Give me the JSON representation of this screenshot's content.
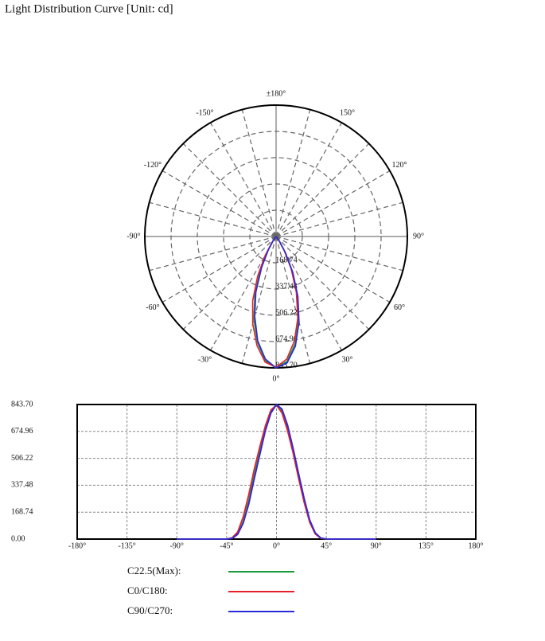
{
  "chart_data": [
    {
      "type": "polar",
      "title": "Light Distribution Curve [Unit: cd]",
      "x": [
        -90,
        -45,
        -40,
        -35,
        -30,
        -25,
        -20,
        -15,
        -10,
        -5,
        0,
        5,
        10,
        15,
        20,
        25,
        30,
        35,
        40,
        45,
        90
      ],
      "series": [
        {
          "color": "#1a9a3a",
          "values": [
            0,
            0,
            6,
            35,
            110,
            240,
            400,
            550,
            690,
            800,
            843.7,
            805,
            700,
            560,
            400,
            245,
            115,
            38,
            6,
            0,
            0
          ]
        },
        {
          "color": "#e8202a",
          "values": [
            0,
            0,
            8,
            45,
            140,
            280,
            440,
            580,
            710,
            810,
            840,
            790,
            680,
            540,
            380,
            230,
            105,
            32,
            5,
            0,
            0
          ]
        },
        {
          "color": "#2a2ad8",
          "values": [
            0,
            0,
            4,
            30,
            100,
            220,
            380,
            530,
            680,
            790,
            843.7,
            815,
            715,
            570,
            410,
            255,
            120,
            40,
            7,
            0,
            0
          ]
        }
      ],
      "rlim": [
        0,
        843.7
      ],
      "rticks": [
        {
          "value": 168.74,
          "label": "168.74"
        },
        {
          "value": 337.48,
          "label": "337.48"
        },
        {
          "value": 506.22,
          "label": "506.22"
        },
        {
          "value": 674.96,
          "label": "674.96"
        },
        {
          "value": 843.7,
          "label": "843.70"
        }
      ],
      "angleticks": [
        {
          "value": 180,
          "label": "±180°"
        },
        {
          "value": -150,
          "label": "-150°"
        },
        {
          "value": 150,
          "label": "150°"
        },
        {
          "value": -120,
          "label": "-120°"
        },
        {
          "value": 120,
          "label": "120°"
        },
        {
          "value": -90,
          "label": "-90°"
        },
        {
          "value": 90,
          "label": "90°"
        },
        {
          "value": -60,
          "label": "-60°"
        },
        {
          "value": 60,
          "label": "60°"
        },
        {
          "value": -30,
          "label": "-30°"
        },
        {
          "value": 30,
          "label": "30°"
        },
        {
          "value": 0,
          "label": "0°"
        }
      ]
    },
    {
      "type": "line",
      "x": [
        -90,
        -45,
        -40,
        -35,
        -30,
        -25,
        -20,
        -15,
        -10,
        -5,
        0,
        5,
        10,
        15,
        20,
        25,
        30,
        35,
        40,
        45,
        90
      ],
      "series": [
        {
          "name": "C22.5(Max):",
          "color": "#1a9a3a",
          "values": [
            0,
            0,
            6,
            35,
            110,
            240,
            400,
            550,
            690,
            800,
            843.7,
            805,
            700,
            560,
            400,
            245,
            115,
            38,
            6,
            0,
            0
          ]
        },
        {
          "name": "C0/C180:",
          "color": "#e8202a",
          "values": [
            0,
            0,
            8,
            45,
            140,
            280,
            440,
            580,
            710,
            810,
            840,
            790,
            680,
            540,
            380,
            230,
            105,
            32,
            5,
            0,
            0
          ]
        },
        {
          "name": "C90/C270:",
          "color": "#2a2ad8",
          "values": [
            0,
            0,
            4,
            30,
            100,
            220,
            380,
            530,
            680,
            790,
            843.7,
            815,
            715,
            570,
            410,
            255,
            120,
            40,
            7,
            0,
            0
          ]
        }
      ],
      "xlim": [
        -180,
        180
      ],
      "xticks": [
        {
          "value": -180,
          "label": "-180°"
        },
        {
          "value": -135,
          "label": "-135°"
        },
        {
          "value": -90,
          "label": "-90°"
        },
        {
          "value": -45,
          "label": "-45°"
        },
        {
          "value": 0,
          "label": "0°"
        },
        {
          "value": 45,
          "label": "45°"
        },
        {
          "value": 90,
          "label": "90°"
        },
        {
          "value": 135,
          "label": "135°"
        },
        {
          "value": 180,
          "label": "180°"
        }
      ],
      "ylim": [
        0,
        843.7
      ],
      "yticks": [
        {
          "value": 0,
          "label": "0.00"
        },
        {
          "value": 168.74,
          "label": "168.74"
        },
        {
          "value": 337.48,
          "label": "337.48"
        },
        {
          "value": 506.22,
          "label": "506.22"
        },
        {
          "value": 674.96,
          "label": "674.96"
        },
        {
          "value": 843.7,
          "label": "843.70"
        }
      ],
      "grid": true
    }
  ]
}
